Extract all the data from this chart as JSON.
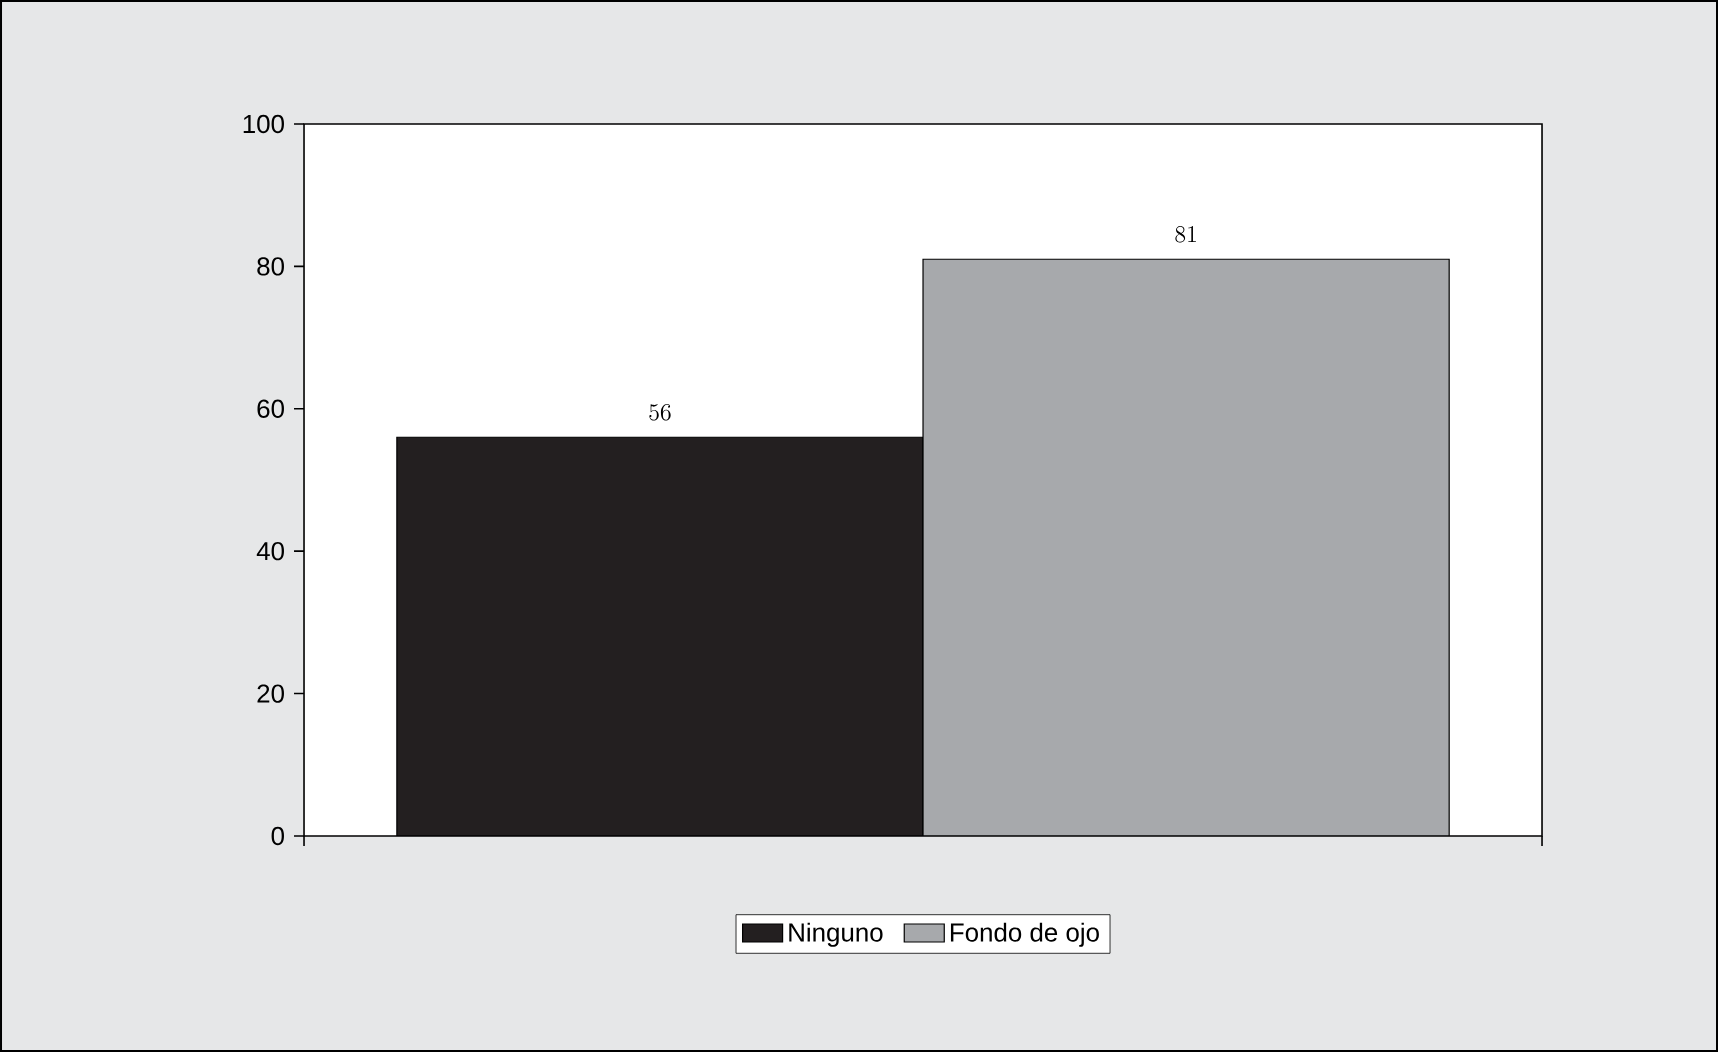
{
  "chart_data": {
    "type": "bar",
    "categories": [
      null
    ],
    "series": [
      {
        "name": "Ninguno",
        "color": "#231f20",
        "values": [
          56
        ]
      },
      {
        "name": "Fondo de ojo",
        "color": "#a7a9ac",
        "values": [
          81
        ]
      }
    ],
    "ylim": [
      0,
      100
    ],
    "yticks": [
      0,
      20,
      40,
      60,
      80,
      100
    ],
    "data_labels": true,
    "legend": "bottom",
    "grid": false
  }
}
